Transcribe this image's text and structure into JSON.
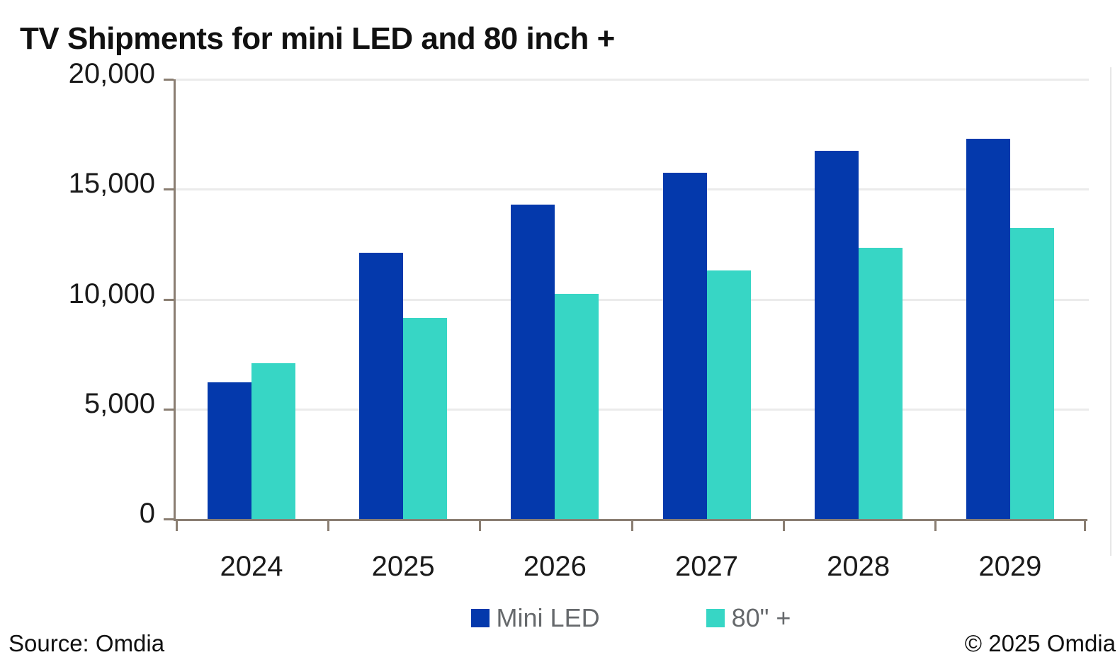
{
  "title": "TV Shipments for mini LED and 80 inch +",
  "footer": {
    "source": "Source: Omdia",
    "copyright": "© 2025 Omdia"
  },
  "colors": {
    "mini_led_bar": "#0439ac",
    "eighty_plus_bar": "#37d6c5",
    "axis": "#8a7e72",
    "gridline": "#ebebeb",
    "right_border": "#e7e7e7",
    "text": "#1a1a1a",
    "legend_text": "#66696c"
  },
  "chart_data": {
    "type": "bar",
    "title": "TV Shipments for mini LED and 80 inch +",
    "categories": [
      "2024",
      "2025",
      "2026",
      "2027",
      "2028",
      "2029"
    ],
    "series": [
      {
        "name": "Mini LED",
        "color": "#0439ac",
        "values": [
          6200,
          12100,
          14300,
          15750,
          16750,
          17300
        ]
      },
      {
        "name": "80\" +",
        "color": "#37d6c5",
        "values": [
          7100,
          9150,
          10250,
          11300,
          12350,
          13250
        ]
      }
    ],
    "xlabel": "",
    "ylabel": "",
    "ylim": [
      0,
      20000
    ],
    "ytick_interval": 5000,
    "ytick_labels": [
      "0",
      "5,000",
      "10,000",
      "15,000",
      "20,000"
    ],
    "grid": true,
    "legend_position": "bottom"
  }
}
